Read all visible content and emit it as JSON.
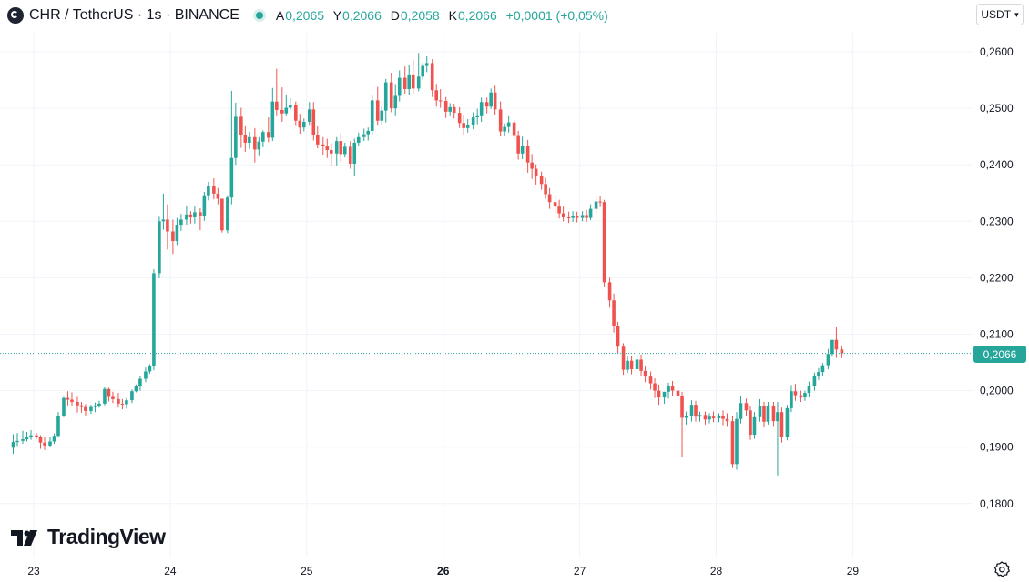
{
  "header": {
    "symbol": "CHR / TetherUS · 1s · BINANCE",
    "ohlc": [
      {
        "k": "A",
        "v": "0,2065"
      },
      {
        "k": "Y",
        "v": "0,2066"
      },
      {
        "k": "D",
        "v": "0,2058"
      },
      {
        "k": "K",
        "v": "0,2066"
      }
    ],
    "change": "+0,0001 (+0,05%)"
  },
  "currency": "USDT",
  "logo_text": "TradingView",
  "icons": {
    "symbol": "chr-logo-icon",
    "status": "market-status-icon",
    "settings": "settings-gear-icon",
    "logo": "tradingview-logo-icon",
    "dropdown": "chevron-down-icon"
  },
  "colors": {
    "up": "#26a69a",
    "down": "#ef5350",
    "grid": "#f0f3fa",
    "text": "#131722",
    "axis_text": "#131722"
  },
  "current_price_label": "0,2066",
  "chart_data": {
    "type": "candlestick",
    "x_axis_labels": [
      "23",
      "24",
      "25",
      "26",
      "27",
      "28",
      "29"
    ],
    "x_axis_bold": "26",
    "y_axis_labels": [
      "0,2600",
      "0,2500",
      "0,2400",
      "0,2300",
      "0,2200",
      "0,2100",
      "0,2000",
      "0,1900",
      "0,1800"
    ],
    "y_axis_values": [
      0.26,
      0.25,
      0.24,
      0.23,
      0.22,
      0.21,
      0.2,
      0.19,
      0.18
    ],
    "ylim": [
      0.1757,
      0.2618
    ],
    "xlim": [
      22.83,
      29.5
    ],
    "current_price": 0.2066,
    "grid": true,
    "candles": [
      [
        22.85,
        0.1899,
        0.1923,
        0.1909,
        0.1888
      ],
      [
        22.88,
        0.1909,
        0.1925,
        0.1911,
        0.1902
      ],
      [
        22.92,
        0.1911,
        0.1929,
        0.1914,
        0.1906
      ],
      [
        22.95,
        0.1914,
        0.1927,
        0.1917,
        0.191
      ],
      [
        22.98,
        0.1917,
        0.193,
        0.1921,
        0.1913
      ],
      [
        23.02,
        0.1921,
        0.1925,
        0.1918,
        0.1915
      ],
      [
        23.05,
        0.1918,
        0.1921,
        0.1908,
        0.1897
      ],
      [
        23.08,
        0.1908,
        0.1918,
        0.1903,
        0.1895
      ],
      [
        23.12,
        0.1903,
        0.1918,
        0.191,
        0.19
      ],
      [
        23.15,
        0.191,
        0.1924,
        0.192,
        0.1906
      ],
      [
        23.18,
        0.192,
        0.1962,
        0.1955,
        0.1917
      ],
      [
        23.22,
        0.1955,
        0.1989,
        0.1987,
        0.1953
      ],
      [
        23.25,
        0.1987,
        0.1999,
        0.1984,
        0.1974
      ],
      [
        23.28,
        0.1984,
        0.1997,
        0.198,
        0.1973
      ],
      [
        23.32,
        0.198,
        0.1989,
        0.1974,
        0.1961
      ],
      [
        23.35,
        0.1974,
        0.198,
        0.1971,
        0.1961
      ],
      [
        23.38,
        0.1971,
        0.1976,
        0.1964,
        0.1956
      ],
      [
        23.42,
        0.1964,
        0.1975,
        0.1971,
        0.1959
      ],
      [
        23.45,
        0.1971,
        0.1979,
        0.1973,
        0.1962
      ],
      [
        23.48,
        0.1973,
        0.1982,
        0.1977,
        0.197
      ],
      [
        23.52,
        0.1977,
        0.2006,
        0.2003,
        0.1974
      ],
      [
        23.55,
        0.2003,
        0.2005,
        0.1989,
        0.1981
      ],
      [
        23.58,
        0.1989,
        0.1998,
        0.1985,
        0.1978
      ],
      [
        23.62,
        0.1985,
        0.1996,
        0.1977,
        0.197
      ],
      [
        23.65,
        0.1977,
        0.1985,
        0.1976,
        0.1967
      ],
      [
        23.68,
        0.1976,
        0.1987,
        0.1983,
        0.1968
      ],
      [
        23.72,
        0.1983,
        0.2002,
        0.1999,
        0.1978
      ],
      [
        23.75,
        0.1999,
        0.2011,
        0.2009,
        0.1997
      ],
      [
        23.78,
        0.2009,
        0.2026,
        0.2021,
        0.2
      ],
      [
        23.82,
        0.2021,
        0.2041,
        0.2034,
        0.2015
      ],
      [
        23.85,
        0.2034,
        0.2047,
        0.2044,
        0.203
      ],
      [
        23.88,
        0.2044,
        0.2215,
        0.2208,
        0.2036
      ],
      [
        23.92,
        0.2208,
        0.2308,
        0.23,
        0.2199
      ],
      [
        23.95,
        0.23,
        0.2349,
        0.2303,
        0.2285
      ],
      [
        23.98,
        0.2303,
        0.233,
        0.2282,
        0.225
      ],
      [
        24.02,
        0.2282,
        0.2303,
        0.2265,
        0.2242
      ],
      [
        24.05,
        0.2265,
        0.2306,
        0.2294,
        0.2258
      ],
      [
        24.08,
        0.2294,
        0.2313,
        0.2303,
        0.2283
      ],
      [
        24.12,
        0.2303,
        0.2328,
        0.2312,
        0.2294
      ],
      [
        24.15,
        0.2312,
        0.2318,
        0.2307,
        0.2296
      ],
      [
        24.18,
        0.2307,
        0.2326,
        0.2316,
        0.2296
      ],
      [
        24.22,
        0.2316,
        0.2323,
        0.231,
        0.2284
      ],
      [
        24.25,
        0.231,
        0.2352,
        0.2346,
        0.2301
      ],
      [
        24.28,
        0.2346,
        0.237,
        0.2363,
        0.2337
      ],
      [
        24.32,
        0.2363,
        0.2376,
        0.2349,
        0.2339
      ],
      [
        24.35,
        0.2349,
        0.2359,
        0.234,
        0.233
      ],
      [
        24.38,
        0.234,
        0.2326,
        0.2284,
        0.228
      ],
      [
        24.42,
        0.2284,
        0.2346,
        0.2342,
        0.2279
      ],
      [
        24.45,
        0.2342,
        0.2531,
        0.2412,
        0.233
      ],
      [
        24.48,
        0.2412,
        0.251,
        0.2485,
        0.24
      ],
      [
        24.52,
        0.2485,
        0.2501,
        0.2453,
        0.243
      ],
      [
        24.55,
        0.2453,
        0.2468,
        0.2439,
        0.2423
      ],
      [
        24.58,
        0.2439,
        0.2458,
        0.2449,
        0.2428
      ],
      [
        24.62,
        0.2449,
        0.2465,
        0.2427,
        0.2404
      ],
      [
        24.65,
        0.2427,
        0.2449,
        0.2441,
        0.2417
      ],
      [
        24.68,
        0.2441,
        0.2461,
        0.2458,
        0.2431
      ],
      [
        24.72,
        0.2458,
        0.2484,
        0.2448,
        0.244
      ],
      [
        24.75,
        0.2448,
        0.2536,
        0.2512,
        0.2442
      ],
      [
        24.78,
        0.2512,
        0.257,
        0.2497,
        0.2486
      ],
      [
        24.82,
        0.2497,
        0.2537,
        0.2491,
        0.2476
      ],
      [
        24.85,
        0.2491,
        0.2523,
        0.2501,
        0.2486
      ],
      [
        24.88,
        0.2501,
        0.2518,
        0.2505,
        0.2497
      ],
      [
        24.92,
        0.2505,
        0.2512,
        0.2478,
        0.2469
      ],
      [
        24.95,
        0.2478,
        0.249,
        0.2466,
        0.2455
      ],
      [
        24.98,
        0.2466,
        0.2482,
        0.2476,
        0.2459
      ],
      [
        25.02,
        0.2476,
        0.2511,
        0.2498,
        0.2469
      ],
      [
        25.05,
        0.2498,
        0.2511,
        0.2452,
        0.2443
      ],
      [
        25.08,
        0.2452,
        0.2468,
        0.2436,
        0.2429
      ],
      [
        25.12,
        0.2436,
        0.2449,
        0.2433,
        0.2418
      ],
      [
        25.15,
        0.2433,
        0.2446,
        0.2426,
        0.2412
      ],
      [
        25.18,
        0.2426,
        0.2438,
        0.242,
        0.2397
      ],
      [
        25.22,
        0.242,
        0.2449,
        0.2442,
        0.2399
      ],
      [
        25.25,
        0.2442,
        0.2456,
        0.2419,
        0.2405
      ],
      [
        25.28,
        0.2419,
        0.2439,
        0.2432,
        0.2413
      ],
      [
        25.32,
        0.2432,
        0.2442,
        0.2402,
        0.2393
      ],
      [
        25.35,
        0.2402,
        0.2446,
        0.2439,
        0.238
      ],
      [
        25.38,
        0.2439,
        0.2457,
        0.2449,
        0.2434
      ],
      [
        25.42,
        0.2449,
        0.2464,
        0.2454,
        0.2442
      ],
      [
        25.45,
        0.2454,
        0.2466,
        0.246,
        0.2443
      ],
      [
        25.48,
        0.246,
        0.2524,
        0.2514,
        0.2452
      ],
      [
        25.52,
        0.2514,
        0.2538,
        0.2478,
        0.2469
      ],
      [
        25.55,
        0.2478,
        0.2504,
        0.2496,
        0.2471
      ],
      [
        25.58,
        0.2496,
        0.2552,
        0.2546,
        0.2475
      ],
      [
        25.62,
        0.2546,
        0.2563,
        0.25,
        0.2493
      ],
      [
        25.65,
        0.25,
        0.2543,
        0.2522,
        0.2486
      ],
      [
        25.68,
        0.2522,
        0.2567,
        0.2554,
        0.2512
      ],
      [
        25.72,
        0.2554,
        0.2574,
        0.2534,
        0.2526
      ],
      [
        25.75,
        0.2534,
        0.2577,
        0.256,
        0.2523
      ],
      [
        25.78,
        0.256,
        0.2586,
        0.2535,
        0.2526
      ],
      [
        25.82,
        0.2535,
        0.2598,
        0.2556,
        0.253
      ],
      [
        25.85,
        0.2556,
        0.2581,
        0.2575,
        0.255
      ],
      [
        25.88,
        0.2575,
        0.2592,
        0.258,
        0.2564
      ],
      [
        25.92,
        0.258,
        0.2587,
        0.2532,
        0.252
      ],
      [
        25.95,
        0.2532,
        0.2543,
        0.2514,
        0.2503
      ],
      [
        25.98,
        0.2514,
        0.2534,
        0.2513,
        0.2501
      ],
      [
        26.02,
        0.2513,
        0.252,
        0.2494,
        0.2483
      ],
      [
        26.05,
        0.2494,
        0.2509,
        0.2502,
        0.2486
      ],
      [
        26.08,
        0.2502,
        0.2508,
        0.2492,
        0.2482
      ],
      [
        26.12,
        0.2492,
        0.2502,
        0.2474,
        0.2465
      ],
      [
        26.15,
        0.2474,
        0.2487,
        0.2465,
        0.2453
      ],
      [
        26.18,
        0.2465,
        0.2481,
        0.247,
        0.2457
      ],
      [
        26.22,
        0.247,
        0.2493,
        0.2484,
        0.2463
      ],
      [
        26.25,
        0.2484,
        0.2499,
        0.2486,
        0.2472
      ],
      [
        26.28,
        0.2486,
        0.2519,
        0.2511,
        0.2476
      ],
      [
        26.32,
        0.2511,
        0.2519,
        0.2503,
        0.2491
      ],
      [
        26.35,
        0.2503,
        0.2535,
        0.2528,
        0.2499
      ],
      [
        26.38,
        0.2528,
        0.254,
        0.2498,
        0.2488
      ],
      [
        26.42,
        0.2498,
        0.2512,
        0.2459,
        0.245
      ],
      [
        26.45,
        0.2459,
        0.2473,
        0.2467,
        0.245
      ],
      [
        26.48,
        0.2467,
        0.2486,
        0.2475,
        0.2457
      ],
      [
        26.52,
        0.2475,
        0.248,
        0.2451,
        0.2443
      ],
      [
        26.55,
        0.2451,
        0.246,
        0.242,
        0.2409
      ],
      [
        26.58,
        0.242,
        0.245,
        0.2434,
        0.241
      ],
      [
        26.62,
        0.2434,
        0.2444,
        0.2404,
        0.2386
      ],
      [
        26.65,
        0.2404,
        0.2419,
        0.2393,
        0.2375
      ],
      [
        26.68,
        0.2393,
        0.2401,
        0.238,
        0.2365
      ],
      [
        26.72,
        0.238,
        0.2388,
        0.2366,
        0.2356
      ],
      [
        26.75,
        0.2366,
        0.2377,
        0.2348,
        0.234
      ],
      [
        26.78,
        0.2348,
        0.2359,
        0.2334,
        0.2322
      ],
      [
        26.82,
        0.2334,
        0.2344,
        0.2326,
        0.2314
      ],
      [
        26.85,
        0.2326,
        0.2338,
        0.2314,
        0.2305
      ],
      [
        26.88,
        0.2314,
        0.2326,
        0.2307,
        0.23
      ],
      [
        26.92,
        0.2307,
        0.2317,
        0.2306,
        0.2297
      ],
      [
        26.95,
        0.2306,
        0.2318,
        0.231,
        0.2299
      ],
      [
        26.98,
        0.231,
        0.2317,
        0.2306,
        0.2298
      ],
      [
        27.02,
        0.2306,
        0.2318,
        0.2311,
        0.23
      ],
      [
        27.05,
        0.2311,
        0.232,
        0.2306,
        0.2299
      ],
      [
        27.08,
        0.2306,
        0.233,
        0.2322,
        0.2302
      ],
      [
        27.12,
        0.2322,
        0.2346,
        0.2335,
        0.2314
      ],
      [
        27.15,
        0.2335,
        0.2345,
        0.2334,
        0.2325
      ],
      [
        27.18,
        0.2334,
        0.2338,
        0.2192,
        0.2183
      ],
      [
        27.22,
        0.2192,
        0.22,
        0.216,
        0.2147
      ],
      [
        27.25,
        0.216,
        0.2172,
        0.2114,
        0.2103
      ],
      [
        27.28,
        0.2114,
        0.2122,
        0.2078,
        0.2067
      ],
      [
        27.32,
        0.2078,
        0.2084,
        0.2037,
        0.2028
      ],
      [
        27.35,
        0.2037,
        0.2062,
        0.2053,
        0.2031
      ],
      [
        27.38,
        0.2053,
        0.2061,
        0.2038,
        0.2029
      ],
      [
        27.42,
        0.2038,
        0.2065,
        0.2055,
        0.203
      ],
      [
        27.45,
        0.2055,
        0.2064,
        0.2035,
        0.2025
      ],
      [
        27.48,
        0.2035,
        0.2044,
        0.2025,
        0.2015
      ],
      [
        27.52,
        0.2025,
        0.2034,
        0.2013,
        0.2002
      ],
      [
        27.55,
        0.2013,
        0.2022,
        0.2,
        0.1987
      ],
      [
        27.58,
        0.2,
        0.2011,
        0.1988,
        0.1975
      ],
      [
        27.62,
        0.1988,
        0.1997,
        0.1998,
        0.1977
      ],
      [
        27.65,
        0.1998,
        0.2014,
        0.2009,
        0.1986
      ],
      [
        27.68,
        0.2009,
        0.2017,
        0.2,
        0.199
      ],
      [
        27.72,
        0.2,
        0.2009,
        0.199,
        0.198
      ],
      [
        27.75,
        0.199,
        0.1998,
        0.1952,
        0.1882
      ],
      [
        27.78,
        0.1952,
        0.1963,
        0.1955,
        0.194
      ],
      [
        27.82,
        0.1955,
        0.1983,
        0.1975,
        0.1945
      ],
      [
        27.85,
        0.1975,
        0.1982,
        0.1954,
        0.1945
      ],
      [
        27.88,
        0.1954,
        0.1963,
        0.1957,
        0.1945
      ],
      [
        27.92,
        0.1957,
        0.1963,
        0.1949,
        0.194
      ],
      [
        27.95,
        0.1949,
        0.196,
        0.1954,
        0.1942
      ],
      [
        27.98,
        0.1954,
        0.1963,
        0.1951,
        0.1944
      ],
      [
        28.02,
        0.1951,
        0.196,
        0.1956,
        0.1944
      ],
      [
        28.05,
        0.1956,
        0.1965,
        0.195,
        0.1939
      ],
      [
        28.08,
        0.195,
        0.196,
        0.1946,
        0.1936
      ],
      [
        28.12,
        0.1946,
        0.1955,
        0.187,
        0.1863
      ],
      [
        28.15,
        0.187,
        0.1962,
        0.195,
        0.186
      ],
      [
        28.18,
        0.195,
        0.199,
        0.1978,
        0.1942
      ],
      [
        28.22,
        0.1978,
        0.1986,
        0.1965,
        0.1955
      ],
      [
        28.25,
        0.1965,
        0.1972,
        0.1922,
        0.1913
      ],
      [
        28.28,
        0.1922,
        0.1962,
        0.1953,
        0.1915
      ],
      [
        28.32,
        0.1953,
        0.1985,
        0.1972,
        0.1945
      ],
      [
        28.35,
        0.1972,
        0.198,
        0.1945,
        0.1935
      ],
      [
        28.38,
        0.1945,
        0.198,
        0.1972,
        0.194
      ],
      [
        28.42,
        0.1972,
        0.198,
        0.1946,
        0.1936
      ],
      [
        28.45,
        0.1946,
        0.198,
        0.1962,
        0.185
      ],
      [
        28.48,
        0.1962,
        0.197,
        0.1918,
        0.1908
      ],
      [
        28.52,
        0.1918,
        0.1975,
        0.1969,
        0.1912
      ],
      [
        28.55,
        0.1969,
        0.201,
        0.1999,
        0.1962
      ],
      [
        28.58,
        0.1999,
        0.2012,
        0.1992,
        0.1982
      ],
      [
        28.62,
        0.1992,
        0.2,
        0.1988,
        0.198
      ],
      [
        28.65,
        0.1988,
        0.2,
        0.1996,
        0.1982
      ],
      [
        28.68,
        0.1996,
        0.2016,
        0.2008,
        0.1988
      ],
      [
        28.72,
        0.2008,
        0.2032,
        0.2026,
        0.2
      ],
      [
        28.75,
        0.2026,
        0.204,
        0.2033,
        0.2019
      ],
      [
        28.78,
        0.2033,
        0.2049,
        0.2045,
        0.2026
      ],
      [
        28.82,
        0.2045,
        0.2074,
        0.2065,
        0.2038
      ],
      [
        28.85,
        0.2065,
        0.208,
        0.209,
        0.206
      ],
      [
        28.88,
        0.209,
        0.2112,
        0.2073,
        0.2058
      ],
      [
        28.92,
        0.2073,
        0.208,
        0.2066,
        0.2058
      ]
    ]
  }
}
